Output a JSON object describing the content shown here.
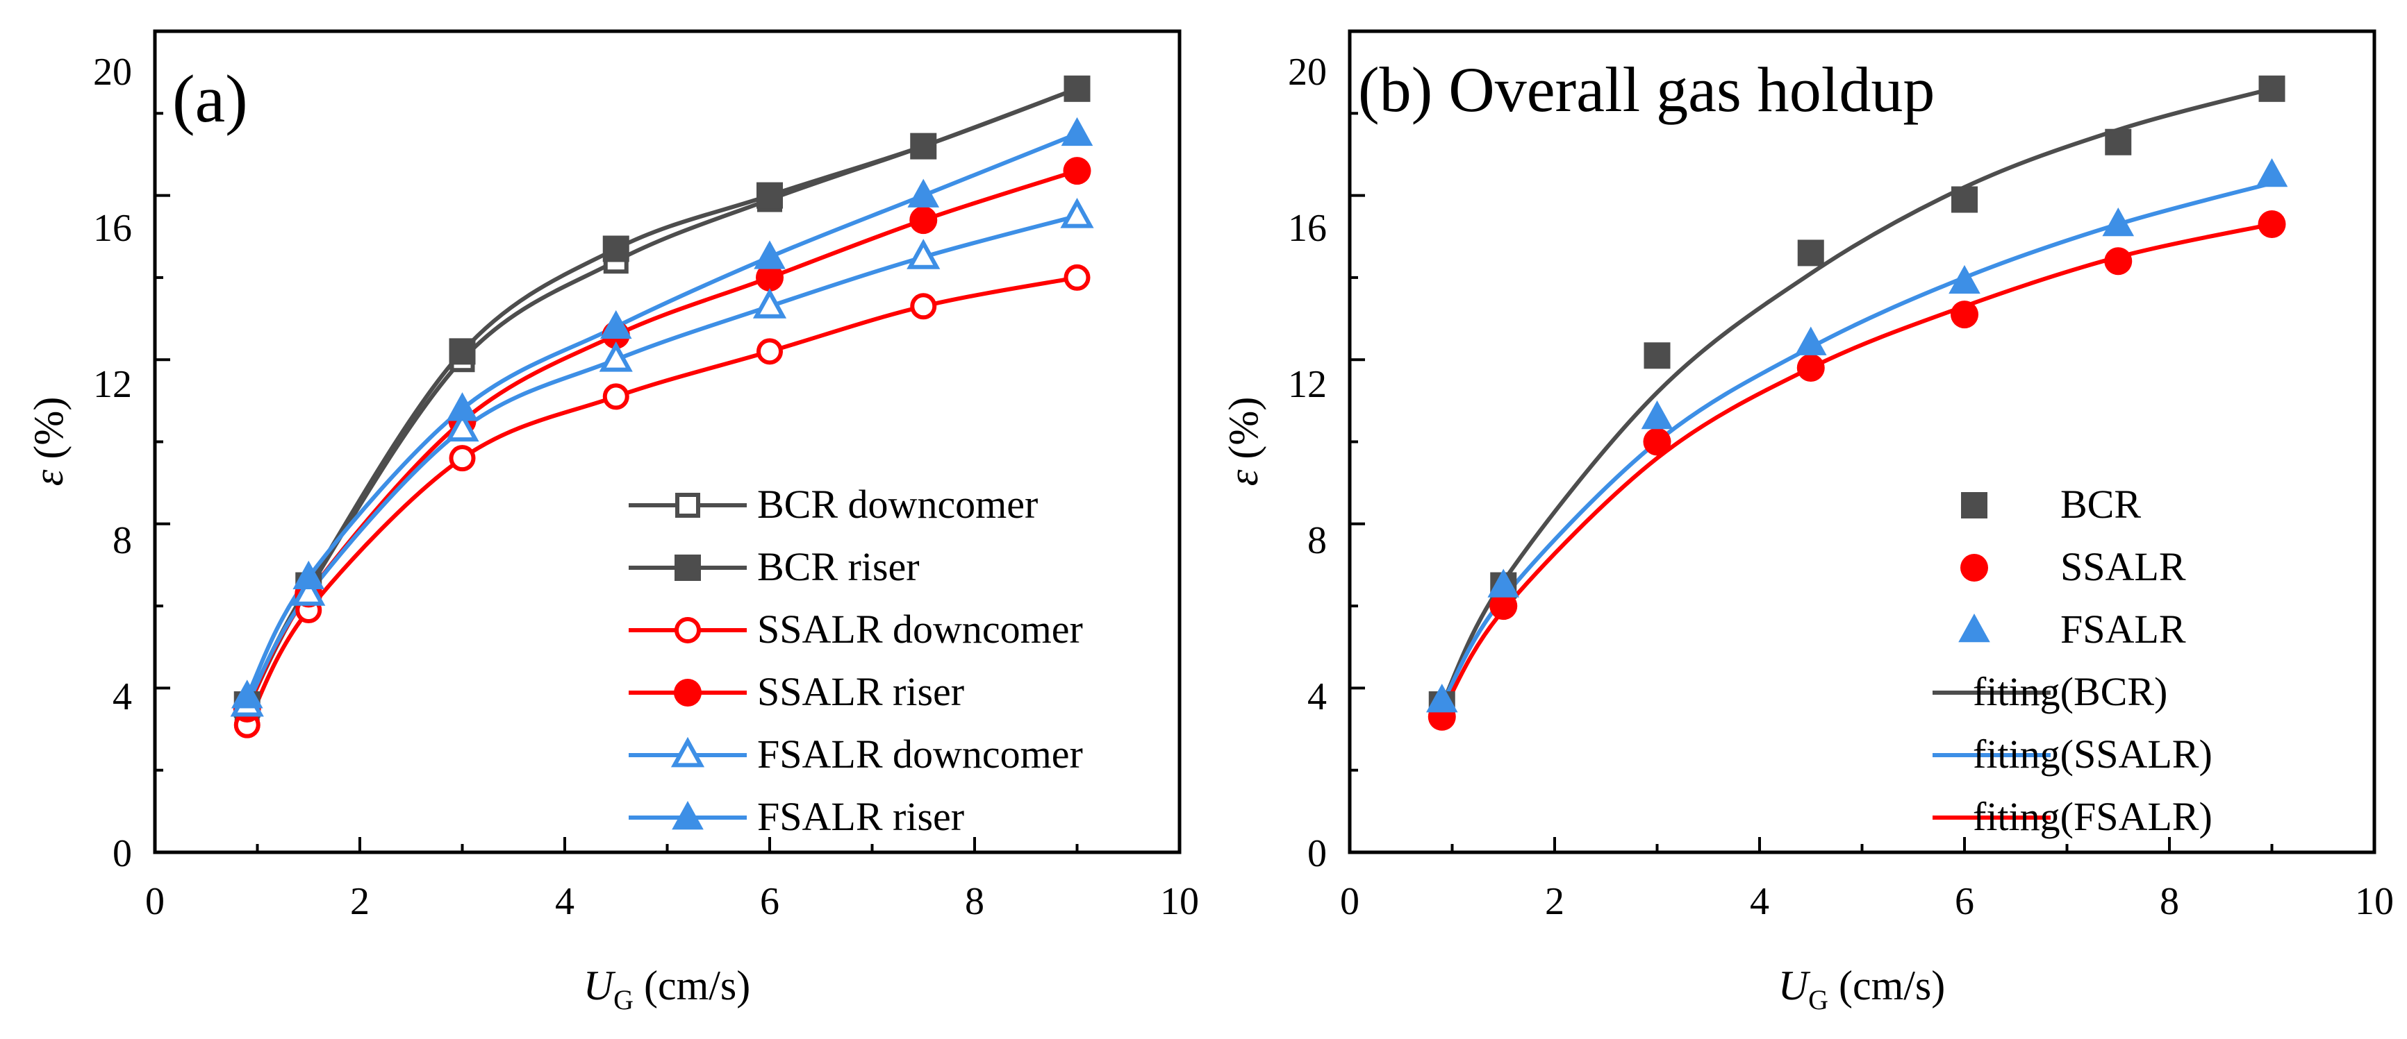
{
  "chart_data": [
    {
      "type": "line",
      "panel_label": "(a)",
      "title": "",
      "xlabel_main": "U",
      "xlabel_sub": "G",
      "xlabel_unit": " (cm/s)",
      "ylabel_sym": "ε",
      "ylabel_unit": " (%)",
      "xlim": [
        0,
        10
      ],
      "ylim": [
        0,
        20
      ],
      "xticks": [
        "0",
        "2",
        "4",
        "6",
        "8",
        "10"
      ],
      "yticks": [
        "0",
        "4",
        "8",
        "12",
        "16",
        "20"
      ],
      "legend_position": "bottom-right",
      "series": [
        {
          "name": "BCR downcomer",
          "color": "#4d4d4d",
          "marker": "square-open",
          "x": [
            0.9,
            1.5,
            3.0,
            4.5,
            6.0,
            7.5,
            9.0
          ],
          "y": [
            3.5,
            6.4,
            12.0,
            14.4,
            15.9,
            17.2,
            18.6
          ]
        },
        {
          "name": "BCR  riser",
          "color": "#4d4d4d",
          "marker": "square",
          "x": [
            0.9,
            1.5,
            3.0,
            4.5,
            6.0,
            7.5,
            9.0
          ],
          "y": [
            3.6,
            6.5,
            12.2,
            14.7,
            16.0,
            17.2,
            18.6
          ]
        },
        {
          "name": "SSALR downcomer",
          "color": "#ff0000",
          "marker": "circle-open",
          "x": [
            0.9,
            1.5,
            3.0,
            4.5,
            6.0,
            7.5,
            9.0
          ],
          "y": [
            3.1,
            5.9,
            9.6,
            11.1,
            12.2,
            13.3,
            14.0
          ]
        },
        {
          "name": "SSALR riser",
          "color": "#ff0000",
          "marker": "circle",
          "x": [
            0.9,
            1.5,
            3.0,
            4.5,
            6.0,
            7.5,
            9.0
          ],
          "y": [
            3.5,
            6.3,
            10.5,
            12.6,
            14.0,
            15.4,
            16.6
          ]
        },
        {
          "name": "FSALR downcomer",
          "color": "#3d8fe6",
          "marker": "triangle-open",
          "x": [
            0.9,
            1.5,
            3.0,
            4.5,
            6.0,
            7.5,
            9.0
          ],
          "y": [
            3.6,
            6.3,
            10.3,
            12.0,
            13.3,
            14.5,
            15.5
          ]
        },
        {
          "name": "FSALR riser",
          "color": "#3d8fe6",
          "marker": "triangle",
          "x": [
            0.9,
            1.5,
            3.0,
            4.5,
            6.0,
            7.5,
            9.0
          ],
          "y": [
            3.8,
            6.7,
            10.8,
            12.8,
            14.5,
            16.0,
            17.5
          ]
        }
      ]
    },
    {
      "type": "scatter",
      "panel_label": "(b) Overall gas holdup",
      "title": "",
      "xlabel_main": "U",
      "xlabel_sub": "G",
      "xlabel_unit": " (cm/s)",
      "ylabel_sym": "ε",
      "ylabel_unit": " (%)",
      "xlim": [
        0,
        10
      ],
      "ylim": [
        0,
        20
      ],
      "xticks": [
        "0",
        "2",
        "4",
        "6",
        "8",
        "10"
      ],
      "yticks": [
        "0",
        "4",
        "8",
        "12",
        "16",
        "20"
      ],
      "legend_position": "bottom-right",
      "series": [
        {
          "name": "BCR",
          "color": "#4d4d4d",
          "marker": "square",
          "x": [
            0.9,
            1.5,
            3.0,
            4.5,
            6.0,
            7.5,
            9.0
          ],
          "y": [
            3.6,
            6.5,
            12.1,
            14.6,
            15.9,
            17.3,
            18.6
          ]
        },
        {
          "name": "SSALR",
          "color": "#ff0000",
          "marker": "circle",
          "x": [
            0.9,
            1.5,
            3.0,
            4.5,
            6.0,
            7.5,
            9.0
          ],
          "y": [
            3.3,
            6.0,
            10.0,
            11.8,
            13.1,
            14.4,
            15.3
          ]
        },
        {
          "name": "FSALR",
          "color": "#3d8fe6",
          "marker": "triangle",
          "x": [
            0.9,
            1.5,
            3.0,
            4.5,
            6.0,
            7.5,
            9.0
          ],
          "y": [
            3.7,
            6.5,
            10.6,
            12.4,
            13.9,
            15.3,
            16.5
          ]
        }
      ],
      "fits": [
        {
          "name": "fiting(BCR)",
          "color": "#4d4d4d",
          "x": [
            0.9,
            1.5,
            3.0,
            4.5,
            6.0,
            7.5,
            9.0
          ],
          "y": [
            3.6,
            6.6,
            11.2,
            14.1,
            16.2,
            17.6,
            18.6
          ]
        },
        {
          "name": "fiting(SSALR)",
          "color": "#3d8fe6",
          "x": [
            0.9,
            1.5,
            3.0,
            4.5,
            6.0,
            7.5,
            9.0
          ],
          "y": [
            3.6,
            6.2,
            10.0,
            12.3,
            14.0,
            15.3,
            16.3
          ]
        },
        {
          "name": "fiting(FSALR)",
          "color": "#ff0000",
          "x": [
            0.9,
            1.5,
            3.0,
            4.5,
            6.0,
            7.5,
            9.0
          ],
          "y": [
            3.4,
            5.9,
            9.6,
            11.8,
            13.3,
            14.5,
            15.3
          ]
        }
      ]
    }
  ]
}
